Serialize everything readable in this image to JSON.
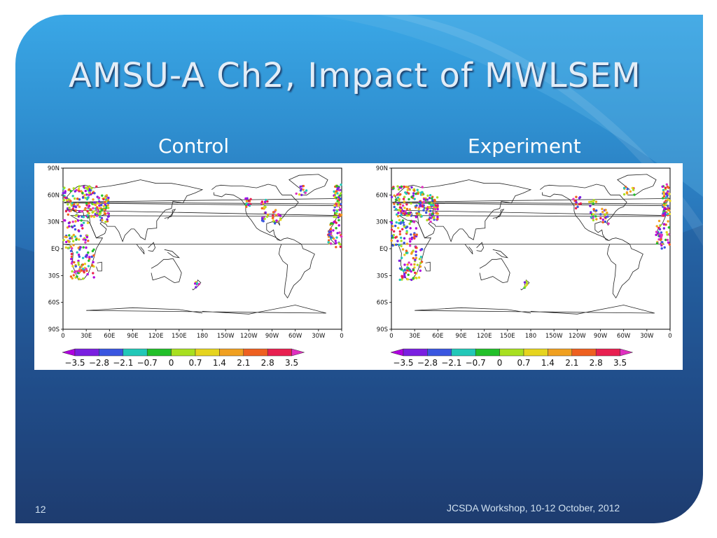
{
  "slide": {
    "title": "AMSU-A Ch2, Impact of MWLSEM",
    "page_number": "12",
    "footer": "JCSDA Workshop, 10-12 October, 2012",
    "colors": {
      "accent_light": "#3aa7e6",
      "accent_dark": "#1f3b6e",
      "title_text": "#e3edf7"
    }
  },
  "panels": {
    "control": {
      "label": "Control"
    },
    "experiment": {
      "label": "Experiment"
    }
  },
  "map": {
    "lat_labels": [
      "90N",
      "60N",
      "30N",
      "EQ",
      "30S",
      "60S",
      "90S"
    ],
    "lon_labels": [
      "0",
      "30E",
      "60E",
      "90E",
      "120E",
      "150E",
      "180",
      "150W",
      "120W",
      "90W",
      "60W",
      "30W",
      "0"
    ]
  },
  "colorbar": {
    "labels": [
      "−3.5",
      "−2.8",
      "−2.1",
      "−0.7",
      "0",
      "0.7",
      "1.4",
      "2.1",
      "2.8",
      "3.5"
    ],
    "colors": [
      "#b000e0",
      "#7a1fe0",
      "#3a56e0",
      "#22c8b8",
      "#22c02a",
      "#a8e020",
      "#e6d41e",
      "#f0a020",
      "#ee6020",
      "#e82050",
      "#e030c0"
    ]
  },
  "icons": {
    "decor": "swoosh-background"
  }
}
